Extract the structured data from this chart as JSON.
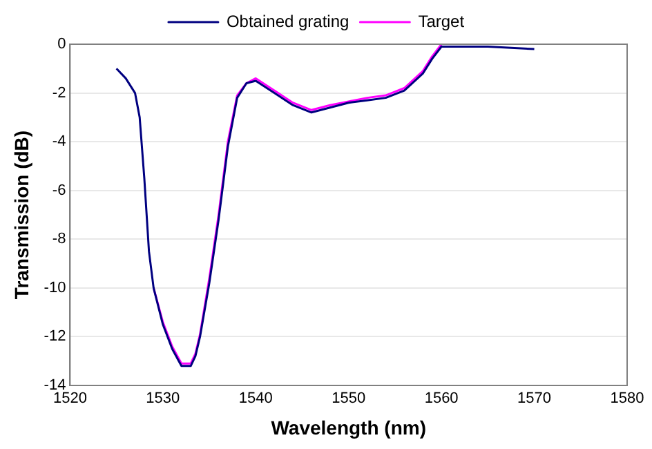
{
  "chart_data": {
    "type": "line",
    "xlabel": "Wavelength (nm)",
    "ylabel": "Transmission (dB)",
    "xlim": [
      1520,
      1580
    ],
    "xticks": [
      1520,
      1530,
      1540,
      1550,
      1560,
      1570,
      1580
    ],
    "ylim": [
      -14,
      0
    ],
    "yticks": [
      -14,
      -12,
      -10,
      -8,
      -6,
      -4,
      -2,
      0
    ],
    "grid": "y",
    "legend": "top",
    "marker": "none",
    "line_style": "solid",
    "series": [
      {
        "name": "Obtained grating",
        "color": "#000080",
        "x": [
          1525,
          1526,
          1527,
          1527.5,
          1528,
          1528.5,
          1529,
          1530,
          1531,
          1532,
          1532.5,
          1533,
          1533.5,
          1534,
          1535,
          1536,
          1537,
          1538,
          1539,
          1540,
          1542,
          1544,
          1546,
          1548,
          1550,
          1552,
          1554,
          1556,
          1558,
          1559,
          1560,
          1565,
          1570
        ],
        "values": [
          -1.0,
          -1.4,
          -2.0,
          -3.0,
          -5.5,
          -8.5,
          -10.0,
          -11.5,
          -12.5,
          -13.2,
          -13.2,
          -13.2,
          -12.8,
          -12.0,
          -9.8,
          -7.2,
          -4.2,
          -2.2,
          -1.6,
          -1.5,
          -2.0,
          -2.5,
          -2.8,
          -2.6,
          -2.4,
          -2.3,
          -2.2,
          -1.9,
          -1.2,
          -0.6,
          -0.1,
          -0.1,
          -0.2
        ]
      },
      {
        "name": "Target",
        "color": "#ff00ff",
        "x": [
          1529,
          1530,
          1531,
          1532,
          1532.5,
          1533,
          1533.5,
          1534,
          1535,
          1536,
          1537,
          1538,
          1539,
          1540,
          1542,
          1544,
          1546,
          1548,
          1550,
          1552,
          1554,
          1556,
          1558,
          1559,
          1560
        ],
        "values": [
          -10.0,
          -11.4,
          -12.4,
          -13.1,
          -13.1,
          -13.1,
          -12.7,
          -11.9,
          -9.6,
          -7.0,
          -4.0,
          -2.1,
          -1.6,
          -1.4,
          -1.9,
          -2.4,
          -2.7,
          -2.5,
          -2.35,
          -2.2,
          -2.1,
          -1.8,
          -1.1,
          -0.5,
          0
        ]
      }
    ]
  }
}
